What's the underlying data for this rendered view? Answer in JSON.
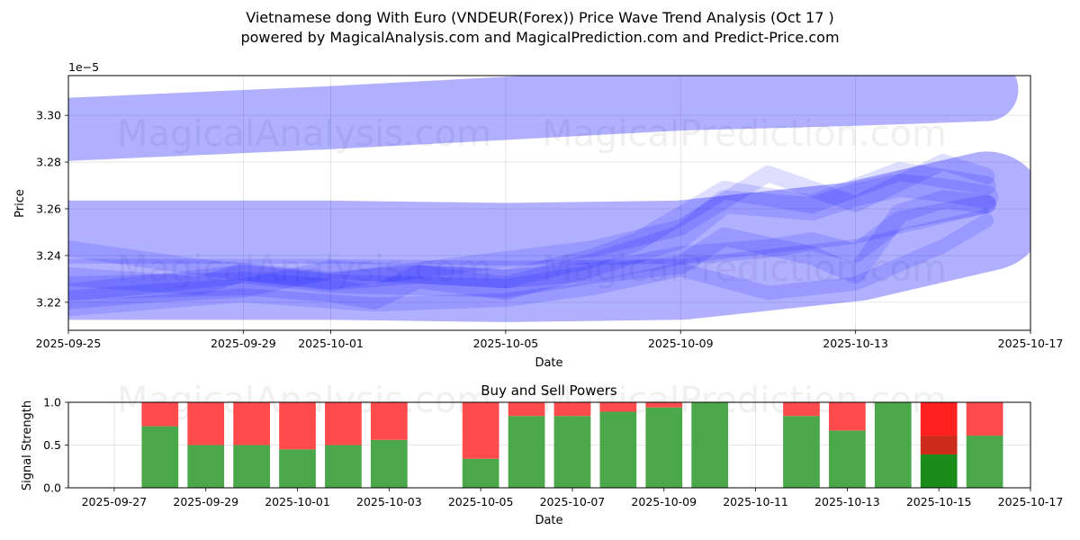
{
  "title_line1": "Vietnamese dong With Euro (VNDEUR(Forex)) Price Wave Trend Analysis (Oct 17 )",
  "title_line2": "powered by MagicalAnalysis.com and MagicalPrediction.com and Predict-Price.com",
  "watermarks": [
    "MagicalAnalysis.com",
    "MagicalPrediction.com"
  ],
  "colors": {
    "band": "#0000ff",
    "buy": "#4aa84a",
    "sell": "#ff4b4b",
    "buy_strong": "#1a8c1a",
    "sell_strong": "#ff2020",
    "sell_dark": "#cc2a1a"
  },
  "chart_data": [
    {
      "type": "area",
      "title": "",
      "xlabel": "Date",
      "ylabel": "Price",
      "y_exponent_label": "1e−5",
      "y_multiplier": 1e-05,
      "xlim": [
        "2025-09-25",
        "2025-10-17"
      ],
      "ylim": [
        3.208,
        3.317
      ],
      "x_ticks": [
        "2025-09-25",
        "2025-09-29",
        "2025-10-01",
        "2025-10-05",
        "2025-10-09",
        "2025-10-13",
        "2025-10-17"
      ],
      "y_ticks": [
        "3.22",
        "3.24",
        "3.26",
        "3.28",
        "3.30"
      ],
      "grid": true,
      "bands": [
        {
          "name": "upper band",
          "x": [
            "2025-09-25",
            "2025-10-01",
            "2025-10-05",
            "2025-10-09",
            "2025-10-13",
            "2025-10-16"
          ],
          "y": [
            3.294,
            3.299,
            3.303,
            3.307,
            3.309,
            3.311
          ],
          "width": 0.027
        },
        {
          "name": "middle band",
          "x": [
            "2025-09-25",
            "2025-10-01",
            "2025-10-05",
            "2025-10-09",
            "2025-10-13",
            "2025-10-16"
          ],
          "y": [
            3.238,
            3.238,
            3.237,
            3.238,
            3.246,
            3.259
          ],
          "width": 0.051
        },
        {
          "name": "wave A",
          "x": [
            "2025-09-25",
            "2025-09-29",
            "2025-10-01",
            "2025-10-02",
            "2025-10-03",
            "2025-10-05",
            "2025-10-07",
            "2025-10-09",
            "2025-10-10",
            "2025-10-12",
            "2025-10-13",
            "2025-10-14",
            "2025-10-15",
            "2025-10-16"
          ],
          "y": [
            3.226,
            3.228,
            3.225,
            3.222,
            3.231,
            3.226,
            3.236,
            3.248,
            3.263,
            3.26,
            3.266,
            3.27,
            3.268,
            3.265
          ],
          "width": 0.01
        },
        {
          "name": "wave B",
          "x": [
            "2025-09-25",
            "2025-09-28",
            "2025-09-29",
            "2025-10-01",
            "2025-10-03",
            "2025-10-05",
            "2025-10-07",
            "2025-10-08",
            "2025-10-10",
            "2025-10-12",
            "2025-10-14",
            "2025-10-16"
          ],
          "y": [
            3.231,
            3.227,
            3.233,
            3.229,
            3.232,
            3.23,
            3.239,
            3.246,
            3.268,
            3.262,
            3.276,
            3.27
          ],
          "width": 0.008
        },
        {
          "name": "wave C",
          "x": [
            "2025-09-25",
            "2025-09-27",
            "2025-09-29",
            "2025-10-01",
            "2025-10-03",
            "2025-10-05",
            "2025-10-07",
            "2025-10-09",
            "2025-10-11",
            "2025-10-12",
            "2025-10-13",
            "2025-10-14",
            "2025-10-16"
          ],
          "y": [
            3.221,
            3.224,
            3.226,
            3.234,
            3.232,
            3.23,
            3.233,
            3.24,
            3.243,
            3.246,
            3.241,
            3.255,
            3.262
          ],
          "width": 0.008
        },
        {
          "name": "wave D",
          "x": [
            "2025-09-25",
            "2025-09-29",
            "2025-10-01",
            "2025-10-05",
            "2025-10-07",
            "2025-10-09",
            "2025-10-10",
            "2025-10-12",
            "2025-10-13",
            "2025-10-14",
            "2025-10-15",
            "2025-10-16"
          ],
          "y": [
            3.224,
            3.232,
            3.228,
            3.226,
            3.232,
            3.236,
            3.248,
            3.24,
            3.232,
            3.258,
            3.264,
            3.262
          ],
          "width": 0.008
        },
        {
          "name": "wave E",
          "x": [
            "2025-09-25",
            "2025-09-29",
            "2025-10-02",
            "2025-10-05",
            "2025-10-07",
            "2025-10-09",
            "2025-10-11",
            "2025-10-13",
            "2025-10-15",
            "2025-10-16"
          ],
          "y": [
            3.217,
            3.223,
            3.219,
            3.221,
            3.226,
            3.234,
            3.224,
            3.228,
            3.244,
            3.255
          ],
          "width": 0.006
        },
        {
          "name": "wave F",
          "x": [
            "2025-09-25",
            "2025-09-28",
            "2025-10-01",
            "2025-10-04",
            "2025-10-07",
            "2025-10-09",
            "2025-10-11",
            "2025-10-13",
            "2025-10-15",
            "2025-10-16"
          ],
          "y": [
            3.243,
            3.235,
            3.229,
            3.236,
            3.243,
            3.252,
            3.275,
            3.262,
            3.28,
            3.274
          ],
          "width": 0.007
        },
        {
          "name": "trend line",
          "x": [
            "2025-09-25",
            "2025-10-01",
            "2025-10-05",
            "2025-10-09",
            "2025-10-13",
            "2025-10-16"
          ],
          "y": [
            3.2375,
            3.2375,
            3.2368,
            3.2375,
            3.246,
            3.259
          ],
          "width": 0.002
        }
      ]
    },
    {
      "type": "bar",
      "title": "Buy and Sell Powers",
      "xlabel": "Date",
      "ylabel": "Signal Strength",
      "xlim": [
        "2025-09-26",
        "2025-10-17"
      ],
      "ylim": [
        0,
        1
      ],
      "x_ticks": [
        "2025-09-27",
        "2025-09-29",
        "2025-10-01",
        "2025-10-03",
        "2025-10-05",
        "2025-10-07",
        "2025-10-09",
        "2025-10-11",
        "2025-10-13",
        "2025-10-15",
        "2025-10-17"
      ],
      "y_ticks": [
        "0.0",
        "0.5",
        "1.0"
      ],
      "grid": true,
      "series": [
        {
          "name": "Buy",
          "dates": [
            "2025-09-28",
            "2025-09-29",
            "2025-09-30",
            "2025-10-01",
            "2025-10-02",
            "2025-10-03",
            "2025-10-05",
            "2025-10-06",
            "2025-10-07",
            "2025-10-08",
            "2025-10-09",
            "2025-10-10",
            "2025-10-12",
            "2025-10-13",
            "2025-10-14",
            "2025-10-15",
            "2025-10-16"
          ],
          "values": [
            0.72,
            0.5,
            0.5,
            0.45,
            0.5,
            0.56,
            0.34,
            0.84,
            0.84,
            0.89,
            0.94,
            1.0,
            0.84,
            0.67,
            1.0,
            0.39,
            0.61
          ]
        },
        {
          "name": "Sell",
          "dates": [
            "2025-09-28",
            "2025-09-29",
            "2025-09-30",
            "2025-10-01",
            "2025-10-02",
            "2025-10-03",
            "2025-10-05",
            "2025-10-06",
            "2025-10-07",
            "2025-10-08",
            "2025-10-09",
            "2025-10-10",
            "2025-10-12",
            "2025-10-13",
            "2025-10-14",
            "2025-10-15",
            "2025-10-16"
          ],
          "values": [
            0.28,
            0.5,
            0.5,
            0.55,
            0.5,
            0.44,
            0.66,
            0.16,
            0.16,
            0.11,
            0.06,
            0.0,
            0.16,
            0.33,
            0.0,
            0.61,
            0.39
          ]
        }
      ],
      "overlay": {
        "date": "2025-10-15",
        "buy_strong": 0.39,
        "sell_mid": [
          0.39,
          0.61
        ],
        "sell_strong": [
          0.61,
          1.0
        ]
      }
    }
  ]
}
